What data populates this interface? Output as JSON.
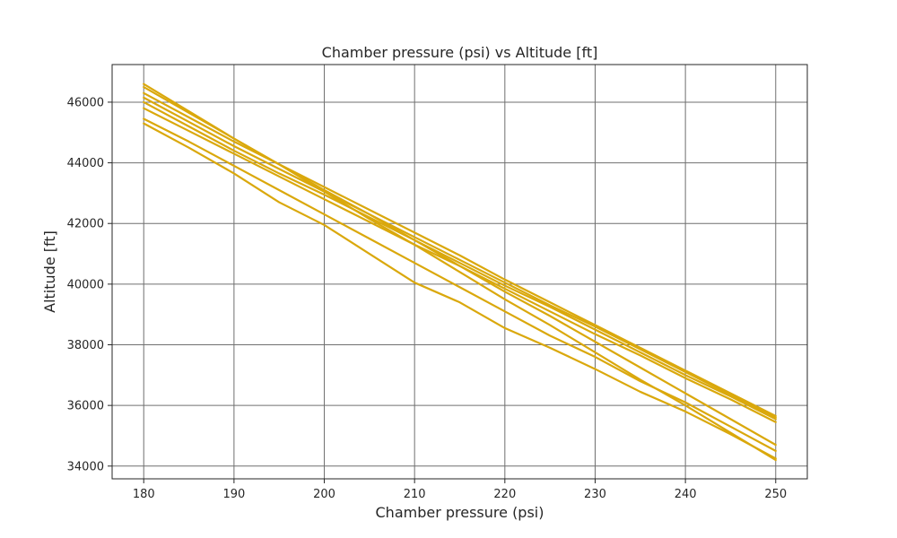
{
  "chart_data": {
    "type": "line",
    "title": "Chamber pressure (psi) vs Altitude [ft]",
    "xlabel": "Chamber pressure (psi)",
    "ylabel": "Altitude [ft]",
    "xlim": [
      176.5,
      253.5
    ],
    "ylim": [
      33580,
      47240
    ],
    "x_ticks": [
      180,
      190,
      200,
      210,
      220,
      230,
      240,
      250
    ],
    "y_ticks": [
      34000,
      36000,
      38000,
      40000,
      42000,
      44000,
      46000
    ],
    "grid": true,
    "legend": "none",
    "color": "#DAA80C",
    "x": [
      180,
      185,
      190,
      195,
      200,
      205,
      210,
      215,
      220,
      225,
      230,
      235,
      240,
      245,
      250
    ],
    "series": [
      {
        "values": [
          45300,
          44500,
          43650,
          42700,
          41950,
          41000,
          40050,
          39400,
          38550,
          37900,
          37200,
          36450,
          35800,
          35050,
          34250
        ]
      },
      {
        "values": [
          45450,
          44700,
          43900,
          43100,
          42300,
          41500,
          40700,
          39900,
          39100,
          38300,
          37600,
          36800,
          36100,
          35300,
          34500
        ]
      },
      {
        "values": [
          45800,
          45050,
          44300,
          43550,
          42800,
          42050,
          41300,
          40600,
          39850,
          39100,
          38350,
          37650,
          36900,
          36200,
          35450
        ]
      },
      {
        "values": [
          46000,
          45200,
          44400,
          43650,
          42950,
          42200,
          41450,
          40700,
          39950,
          39250,
          38500,
          37750,
          37000,
          36300,
          35550
        ]
      },
      {
        "values": [
          46150,
          45350,
          44550,
          43800,
          43050,
          42300,
          41550,
          40800,
          40050,
          39300,
          38600,
          37850,
          37100,
          36350,
          35600
        ]
      },
      {
        "values": [
          46300,
          45500,
          44700,
          43950,
          43200,
          42450,
          41700,
          40950,
          40150,
          39400,
          38650,
          37900,
          37150,
          36400,
          35650
        ]
      },
      {
        "values": [
          46500,
          45650,
          44800,
          43950,
          43100,
          42300,
          41450,
          40600,
          39750,
          38950,
          38100,
          37250,
          36400,
          35550,
          34700
        ]
      },
      {
        "values": [
          46600,
          45700,
          44800,
          43950,
          43050,
          42150,
          41300,
          40400,
          39500,
          38650,
          37750,
          36850,
          36000,
          35100,
          34200
        ]
      }
    ]
  }
}
